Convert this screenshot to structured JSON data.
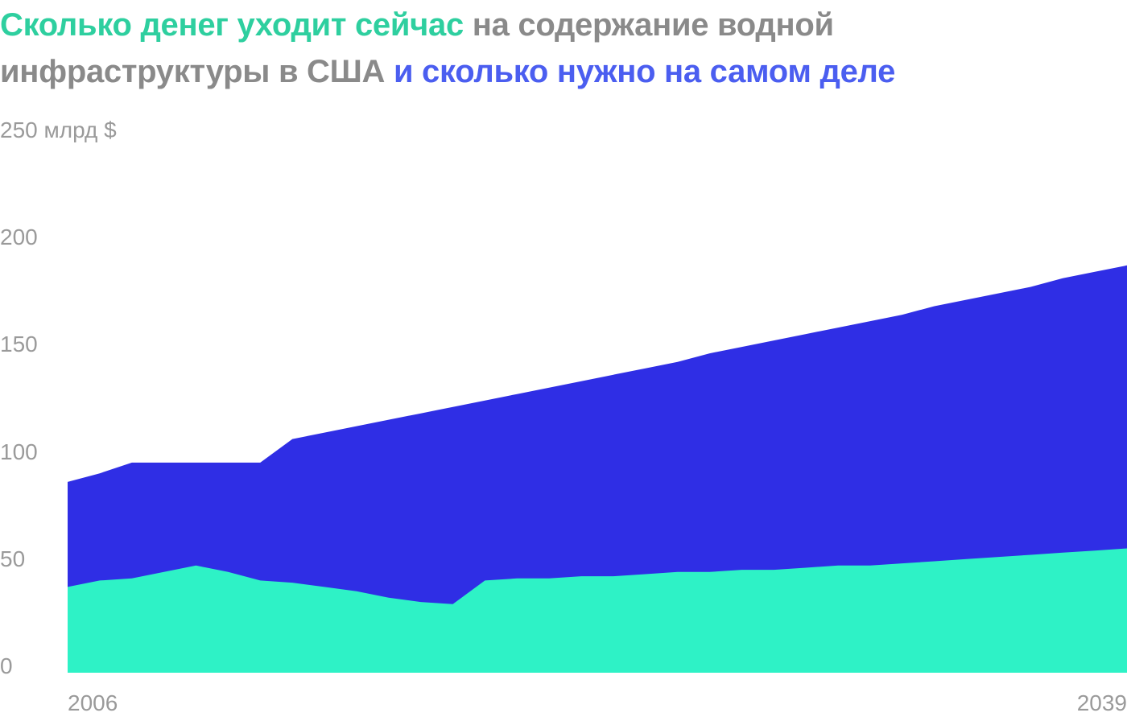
{
  "title": {
    "part1": "Сколько денег уходит сейчас",
    "part2": "на содержание водной инфраструктуры в США",
    "part3": "и сколько нужно на самом деле"
  },
  "colors": {
    "current": "#2ef2c6",
    "needed": "#2f2ee5",
    "title_current": "#2ecf9f",
    "title_gray": "#8a8a8a",
    "title_needed": "#4b5ef0",
    "tick": "#9a9a9a"
  },
  "chart_data": {
    "type": "area",
    "title": "Сколько денег уходит сейчас на содержание водной инфраструктуры в США и сколько нужно на самом деле",
    "xlabel": "",
    "ylabel": "",
    "ylim": [
      0,
      250
    ],
    "xlim": [
      2006,
      2039
    ],
    "y_ticks": [
      "0",
      "50",
      "100",
      "150",
      "200",
      "250 млрд $"
    ],
    "x_ticks": [
      "2006",
      "2039"
    ],
    "grid": false,
    "legend": "none",
    "series": [
      {
        "key": "needed",
        "stacked": false,
        "x": [
          2006,
          2007,
          2008,
          2009,
          2010,
          2011,
          2012,
          2013,
          2014,
          2015,
          2016,
          2017,
          2018,
          2019,
          2020,
          2021,
          2022,
          2023,
          2024,
          2025,
          2026,
          2027,
          2028,
          2029,
          2030,
          2031,
          2032,
          2033,
          2034,
          2035,
          2036,
          2037,
          2038,
          2039
        ],
        "values": [
          89,
          93,
          98,
          98,
          98,
          98,
          98,
          109,
          112,
          115,
          118,
          121,
          124,
          127,
          130,
          133,
          136,
          139,
          142,
          145,
          149,
          152,
          155,
          158,
          161,
          164,
          167,
          171,
          174,
          177,
          180,
          184,
          187,
          190
        ]
      },
      {
        "key": "current",
        "stacked": false,
        "x": [
          2006,
          2007,
          2008,
          2009,
          2010,
          2011,
          2012,
          2013,
          2014,
          2015,
          2016,
          2017,
          2018,
          2019,
          2020,
          2021,
          2022,
          2023,
          2024,
          2025,
          2026,
          2027,
          2028,
          2029,
          2030,
          2031,
          2032,
          2033,
          2034,
          2035,
          2036,
          2037,
          2038,
          2039
        ],
        "values": [
          40,
          43,
          44,
          47,
          50,
          47,
          43,
          42,
          40,
          38,
          35,
          33,
          32,
          43,
          44,
          44,
          45,
          45,
          46,
          47,
          47,
          48,
          48,
          49,
          50,
          50,
          51,
          52,
          53,
          54,
          55,
          56,
          57,
          58
        ]
      }
    ]
  }
}
